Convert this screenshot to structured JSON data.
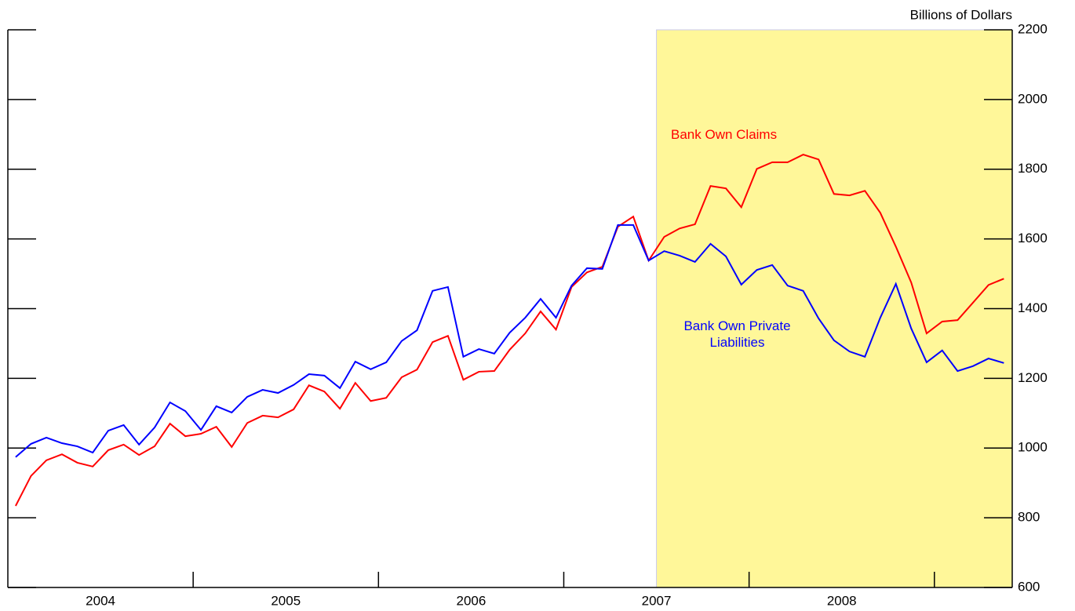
{
  "chart_data": {
    "type": "line",
    "y_axis_label": "Billions of Dollars",
    "x": [
      2004.042,
      2004.125,
      2004.208,
      2004.292,
      2004.375,
      2004.458,
      2004.542,
      2004.625,
      2004.708,
      2004.792,
      2004.875,
      2004.958,
      2005.042,
      2005.125,
      2005.208,
      2005.292,
      2005.375,
      2005.458,
      2005.542,
      2005.625,
      2005.708,
      2005.792,
      2005.875,
      2005.958,
      2006.042,
      2006.125,
      2006.208,
      2006.292,
      2006.375,
      2006.458,
      2006.542,
      2006.625,
      2006.708,
      2006.792,
      2006.875,
      2006.958,
      2007.042,
      2007.125,
      2007.208,
      2007.292,
      2007.375,
      2007.458,
      2007.542,
      2007.625,
      2007.708,
      2007.792,
      2007.875,
      2007.958,
      2008.042,
      2008.125,
      2008.208,
      2008.292,
      2008.375,
      2008.458,
      2008.542,
      2008.625,
      2008.708,
      2008.792,
      2008.875,
      2008.958,
      2009.042,
      2009.125,
      2009.208,
      2009.292,
      2009.375
    ],
    "series": [
      {
        "name": "Bank Own Claims",
        "color": "#ff0000",
        "values": [
          834,
          920,
          965,
          982,
          958,
          947,
          994,
          1010,
          980,
          1005,
          1070,
          1034,
          1041,
          1061,
          1003,
          1072,
          1093,
          1088,
          1111,
          1180,
          1162,
          1113,
          1187,
          1135,
          1144,
          1203,
          1225,
          1304,
          1322,
          1196,
          1219,
          1221,
          1282,
          1329,
          1392,
          1340,
          1462,
          1504,
          1520,
          1635,
          1664,
          1538,
          1606,
          1630,
          1642,
          1752,
          1745,
          1691,
          1801,
          1820,
          1820,
          1842,
          1828,
          1729,
          1725,
          1738,
          1675,
          1578,
          1475,
          1329,
          1363,
          1367,
          1417,
          1468,
          1486
        ]
      },
      {
        "name": "Bank Own Private Liabilities",
        "color": "#0000ff",
        "values": [
          974,
          1012,
          1030,
          1014,
          1005,
          987,
          1050,
          1066,
          1010,
          1059,
          1131,
          1106,
          1052,
          1120,
          1102,
          1147,
          1167,
          1158,
          1181,
          1212,
          1208,
          1172,
          1248,
          1226,
          1246,
          1307,
          1338,
          1451,
          1462,
          1262,
          1284,
          1271,
          1331,
          1374,
          1428,
          1374,
          1466,
          1516,
          1514,
          1640,
          1640,
          1538,
          1565,
          1552,
          1534,
          1586,
          1550,
          1469,
          1511,
          1525,
          1466,
          1451,
          1372,
          1309,
          1277,
          1262,
          1374,
          1471,
          1343,
          1246,
          1280,
          1221,
          1235,
          1257,
          1244
        ]
      }
    ],
    "xlim": [
      2004,
      2009.42
    ],
    "xticks": [
      {
        "value": 2004.5,
        "label": "2004"
      },
      {
        "value": 2005.5,
        "label": "2005"
      },
      {
        "value": 2006.5,
        "label": "2006"
      },
      {
        "value": 2007.5,
        "label": "2007"
      },
      {
        "value": 2008.5,
        "label": "2008"
      }
    ],
    "xtick_marks": [
      2005,
      2006,
      2007,
      2008,
      2009
    ],
    "ylim": [
      600,
      2200
    ],
    "yticks": [
      600,
      800,
      1000,
      1200,
      1400,
      1600,
      1800,
      2000,
      2200
    ],
    "shade": {
      "from": 2007.5,
      "color": "#fff799"
    }
  }
}
